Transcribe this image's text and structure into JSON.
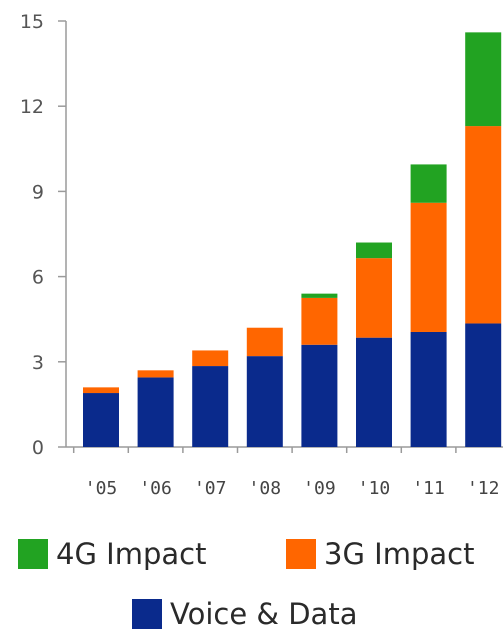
{
  "chart_data": {
    "type": "bar",
    "stacked": true,
    "categories": [
      "'05",
      "'06",
      "'07",
      "'08",
      "'09",
      "'10",
      "'11",
      "'12"
    ],
    "series": [
      {
        "name": "Voice & Data",
        "color": "#0a2a8c",
        "values": [
          1.9,
          2.45,
          2.85,
          3.2,
          3.6,
          3.85,
          4.05,
          4.35
        ]
      },
      {
        "name": "3G Impact",
        "color": "#ff6600",
        "values": [
          0.2,
          0.25,
          0.55,
          1.0,
          1.65,
          2.8,
          4.55,
          6.95
        ]
      },
      {
        "name": "4G Impact",
        "color": "#22a322",
        "values": [
          0,
          0,
          0,
          0,
          0.15,
          0.55,
          1.35,
          3.3
        ]
      }
    ],
    "ylim": [
      0,
      15
    ],
    "yticks": [
      "0",
      "3",
      "6",
      "9",
      "12",
      "15"
    ],
    "ytick_values": [
      0,
      3,
      6,
      9,
      12,
      15
    ],
    "grid": false,
    "legend_position": "bottom"
  },
  "legend": {
    "items": [
      {
        "label": "4G Impact",
        "color": "#22a322"
      },
      {
        "label": "3G Impact",
        "color": "#ff6600"
      },
      {
        "label": "Voice & Data",
        "color": "#0a2a8c"
      }
    ]
  },
  "colors": {
    "axis": "#9a9a9a",
    "text": "#555555"
  }
}
